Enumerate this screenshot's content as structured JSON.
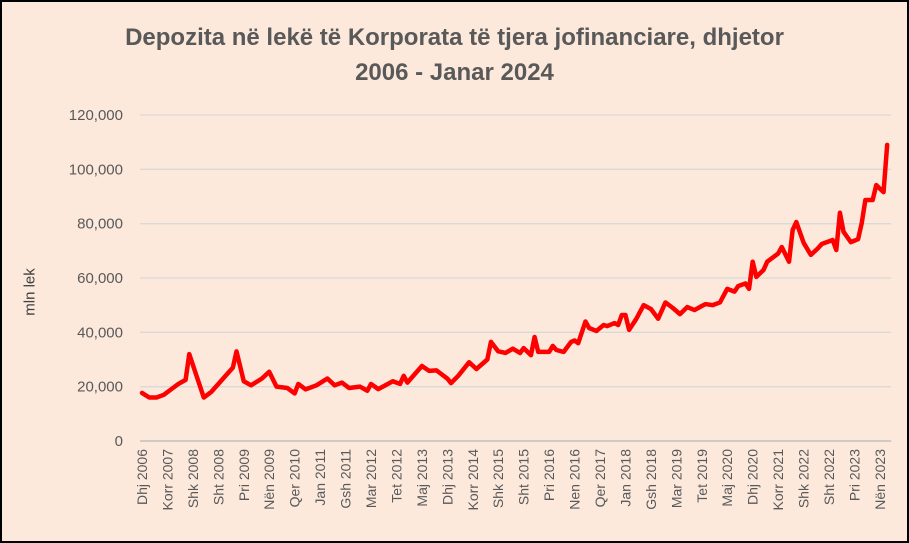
{
  "chart_data": {
    "type": "line",
    "title_lines": [
      "Depozita në lekë të Korporata të tjera jofinanciare, dhjetor",
      "2006 - Janar 2024"
    ],
    "xlabel": "",
    "ylabel": "mln lek",
    "ylim": [
      0,
      120000
    ],
    "yticks": [
      0,
      20000,
      40000,
      60000,
      80000,
      100000,
      120000
    ],
    "ytick_labels": [
      "0",
      "20,000",
      "40,000",
      "60,000",
      "80,000",
      "100,000",
      "120,000"
    ],
    "grid": true,
    "x_start": "2006-12",
    "x_end": "2024-01",
    "xtick_labels": [
      "Dhj 2006",
      "Korr 2007",
      "Shk 2008",
      "Sht 2008",
      "Pri 2009",
      "Nën 2009",
      "Qer 2010",
      "Jan 2011",
      "Gsh 2011",
      "Mar 2012",
      "Tet 2012",
      "Maj 2013",
      "Dhj 2013",
      "Korr 2014",
      "Shk 2015",
      "Sht 2015",
      "Pri 2016",
      "Nen 2016",
      "Qer 2017",
      "Jan 2018",
      "Gsh 2018",
      "Mar 2019",
      "Tet 2019",
      "Maj 2020",
      "Dhj 2020",
      "Korr 2021",
      "Shk 2022",
      "Sht 2022",
      "Pri 2023",
      "Nën 2023"
    ],
    "xtick_step_months": 7,
    "series_color": "#ff0000",
    "series": [
      {
        "name": "Depozita në lekë",
        "points": [
          [
            "2006-12",
            17700
          ],
          [
            "2007-02",
            16000
          ],
          [
            "2007-04",
            16000
          ],
          [
            "2007-06",
            17000
          ],
          [
            "2007-08",
            19000
          ],
          [
            "2007-10",
            21000
          ],
          [
            "2007-12",
            22500
          ],
          [
            "2008-01",
            32000
          ],
          [
            "2008-03",
            24000
          ],
          [
            "2008-05",
            16000
          ],
          [
            "2008-07",
            18000
          ],
          [
            "2008-09",
            21000
          ],
          [
            "2008-11",
            24000
          ],
          [
            "2009-01",
            27000
          ],
          [
            "2009-02",
            33000
          ],
          [
            "2009-04",
            22000
          ],
          [
            "2009-06",
            20500
          ],
          [
            "2009-09",
            23000
          ],
          [
            "2009-11",
            25500
          ],
          [
            "2010-01",
            20000
          ],
          [
            "2010-04",
            19500
          ],
          [
            "2010-06",
            17500
          ],
          [
            "2010-07",
            21000
          ],
          [
            "2010-09",
            19000
          ],
          [
            "2010-12",
            20500
          ],
          [
            "2011-03",
            23000
          ],
          [
            "2011-05",
            20500
          ],
          [
            "2011-07",
            21500
          ],
          [
            "2011-09",
            19500
          ],
          [
            "2011-12",
            20000
          ],
          [
            "2012-02",
            18500
          ],
          [
            "2012-03",
            21000
          ],
          [
            "2012-05",
            19100
          ],
          [
            "2012-09",
            22000
          ],
          [
            "2012-11",
            21000
          ],
          [
            "2012-12",
            24000
          ],
          [
            "2013-01",
            21500
          ],
          [
            "2013-05",
            27600
          ],
          [
            "2013-07",
            25800
          ],
          [
            "2013-09",
            26000
          ],
          [
            "2013-12",
            23000
          ],
          [
            "2014-01",
            21300
          ],
          [
            "2014-03",
            24000
          ],
          [
            "2014-06",
            29000
          ],
          [
            "2014-08",
            26500
          ],
          [
            "2014-11",
            30000
          ],
          [
            "2014-12",
            36500
          ],
          [
            "2015-02",
            33000
          ],
          [
            "2015-04",
            32400
          ],
          [
            "2015-06",
            34000
          ],
          [
            "2015-08",
            32400
          ],
          [
            "2015-09",
            34200
          ],
          [
            "2015-11",
            31600
          ],
          [
            "2015-12",
            38300
          ],
          [
            "2016-01",
            32800
          ],
          [
            "2016-04",
            32800
          ],
          [
            "2016-05",
            35000
          ],
          [
            "2016-06",
            33500
          ],
          [
            "2016-08",
            32800
          ],
          [
            "2016-10",
            36400
          ],
          [
            "2016-11",
            37000
          ],
          [
            "2016-12",
            36000
          ],
          [
            "2017-02",
            44000
          ],
          [
            "2017-03",
            41600
          ],
          [
            "2017-05",
            40500
          ],
          [
            "2017-07",
            42700
          ],
          [
            "2017-08",
            42300
          ],
          [
            "2017-10",
            43400
          ],
          [
            "2017-11",
            42700
          ],
          [
            "2017-12",
            46400
          ],
          [
            "2018-01",
            46400
          ],
          [
            "2018-02",
            40900
          ],
          [
            "2018-04",
            45000
          ],
          [
            "2018-06",
            50000
          ],
          [
            "2018-08",
            48600
          ],
          [
            "2018-10",
            45000
          ],
          [
            "2018-12",
            51000
          ],
          [
            "2019-02",
            49000
          ],
          [
            "2019-04",
            46700
          ],
          [
            "2019-06",
            49300
          ],
          [
            "2019-08",
            48200
          ],
          [
            "2019-10",
            49700
          ],
          [
            "2019-11",
            50400
          ],
          [
            "2020-01",
            50000
          ],
          [
            "2020-03",
            51000
          ],
          [
            "2020-05",
            56000
          ],
          [
            "2020-07",
            55000
          ],
          [
            "2020-08",
            57000
          ],
          [
            "2020-10",
            58000
          ],
          [
            "2020-11",
            56000
          ],
          [
            "2020-12",
            66000
          ],
          [
            "2021-01",
            60400
          ],
          [
            "2021-03",
            63000
          ],
          [
            "2021-04",
            66000
          ],
          [
            "2021-07",
            69000
          ],
          [
            "2021-08",
            71400
          ],
          [
            "2021-10",
            66000
          ],
          [
            "2021-11",
            77700
          ],
          [
            "2021-12",
            80600
          ],
          [
            "2022-02",
            73000
          ],
          [
            "2022-04",
            68500
          ],
          [
            "2022-06",
            71000
          ],
          [
            "2022-07",
            72500
          ],
          [
            "2022-10",
            74000
          ],
          [
            "2022-11",
            70300
          ],
          [
            "2022-12",
            84000
          ],
          [
            "2023-01",
            77000
          ],
          [
            "2023-03",
            73200
          ],
          [
            "2023-05",
            74300
          ],
          [
            "2023-06",
            80200
          ],
          [
            "2023-07",
            88700
          ],
          [
            "2023-09",
            88700
          ],
          [
            "2023-10",
            94200
          ],
          [
            "2023-12",
            91600
          ],
          [
            "2024-01",
            109000
          ]
        ]
      }
    ]
  }
}
